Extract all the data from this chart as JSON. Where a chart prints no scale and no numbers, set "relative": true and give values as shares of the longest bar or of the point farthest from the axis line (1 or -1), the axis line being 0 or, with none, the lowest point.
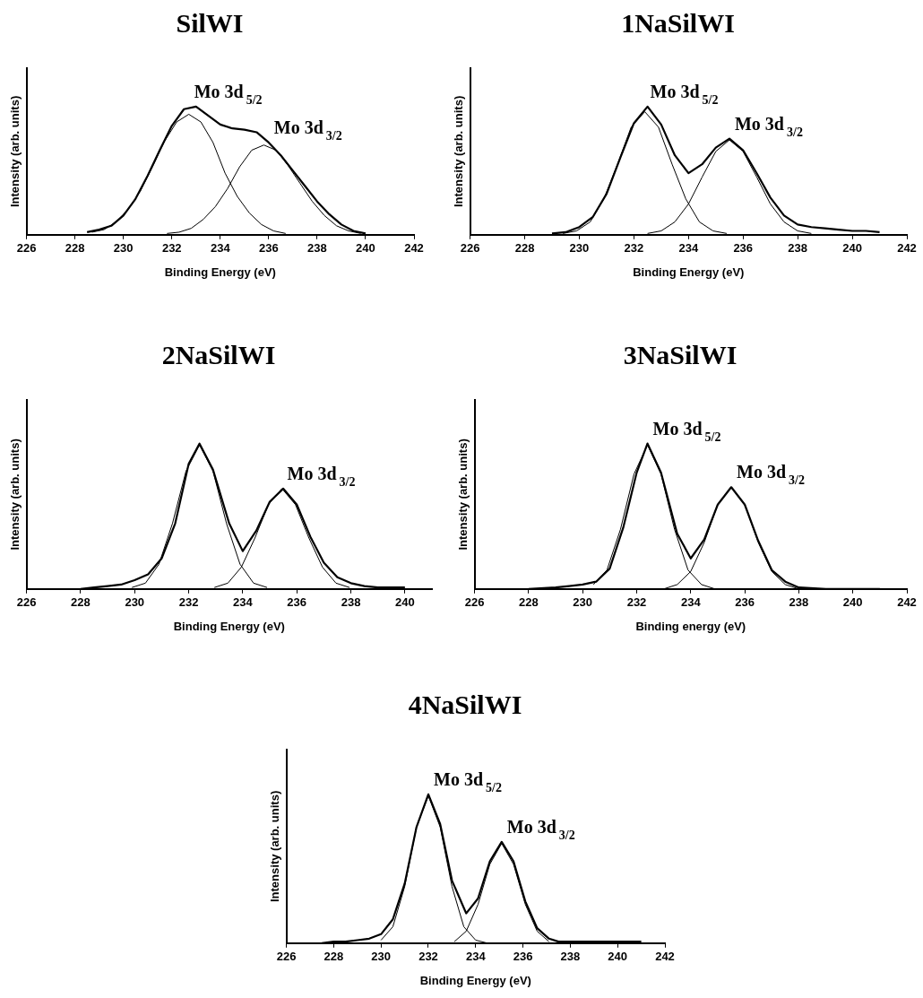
{
  "chart_data": [
    {
      "type": "line",
      "title": "SilWI",
      "xlabel": "Binding Energy (eV)",
      "ylabel": "Intensity (arb. units)",
      "relative": true,
      "marker": "none",
      "xlim": [
        226,
        242
      ],
      "xticks": [
        226,
        228,
        230,
        232,
        234,
        236,
        238,
        240,
        242
      ],
      "annotations": [
        {
          "text": "Mo 3d$_{5/2}$",
          "x": 232.7,
          "y": 1.0
        },
        {
          "text": "Mo 3d$_{3/2}$",
          "x": 236,
          "y": 0.72
        }
      ],
      "series": [
        {
          "color": "#000000",
          "x": [
            228.5,
            229,
            229.5,
            230,
            230.5,
            231,
            231.5,
            232,
            232.5,
            233,
            233.5,
            234,
            234.5,
            235,
            235.5,
            236,
            236.5,
            237,
            237.5,
            238,
            238.5,
            239,
            239.5,
            240
          ],
          "values": [
            0.02,
            0.04,
            0.07,
            0.15,
            0.28,
            0.46,
            0.66,
            0.85,
            0.98,
            1.0,
            0.93,
            0.86,
            0.83,
            0.82,
            0.8,
            0.72,
            0.62,
            0.5,
            0.38,
            0.26,
            0.16,
            0.08,
            0.03,
            0.01
          ]
        },
        {
          "color": "#000000",
          "x": [
            228.7,
            229.2,
            229.7,
            230.2,
            230.7,
            231.2,
            231.7,
            232.2,
            232.7,
            233.2,
            233.7,
            234.2,
            234.7,
            235.2,
            235.7,
            236.2,
            236.7
          ],
          "values": [
            0.02,
            0.04,
            0.1,
            0.2,
            0.34,
            0.53,
            0.73,
            0.88,
            0.94,
            0.88,
            0.72,
            0.48,
            0.3,
            0.17,
            0.08,
            0.03,
            0.01
          ]
        },
        {
          "color": "#000000",
          "x": [
            231.8,
            232.3,
            232.8,
            233.3,
            233.8,
            234.3,
            234.8,
            235.3,
            235.8,
            236.3,
            236.8,
            237.3,
            237.8,
            238.3,
            238.8,
            239.3,
            239.8
          ],
          "values": [
            0.01,
            0.02,
            0.05,
            0.12,
            0.22,
            0.36,
            0.53,
            0.66,
            0.7,
            0.66,
            0.54,
            0.4,
            0.26,
            0.15,
            0.07,
            0.03,
            0.01
          ]
        }
      ]
    },
    {
      "type": "line",
      "title": "1NaSilWI",
      "xlabel": "Binding Energy (eV)",
      "ylabel": "Intensity (arb. units)",
      "relative": true,
      "marker": "none",
      "xlim": [
        226,
        242
      ],
      "xticks": [
        226,
        228,
        230,
        232,
        234,
        236,
        238,
        240,
        242
      ],
      "annotations": [
        {
          "text": "Mo 3d$_{5/2}$",
          "x": 232.4,
          "y": 1.0
        },
        {
          "text": "Mo 3d$_{3/2}$",
          "x": 235.5,
          "y": 0.75
        }
      ],
      "series": [
        {
          "color": "#000000",
          "x": [
            229,
            229.5,
            230,
            230.5,
            231,
            231.5,
            232,
            232.5,
            233,
            233.5,
            234,
            234.5,
            235,
            235.5,
            236,
            236.5,
            237,
            237.5,
            238,
            238.5,
            239,
            239.5,
            240,
            240.5,
            241
          ],
          "values": [
            0.01,
            0.02,
            0.06,
            0.14,
            0.32,
            0.6,
            0.87,
            1.0,
            0.86,
            0.62,
            0.48,
            0.55,
            0.68,
            0.75,
            0.66,
            0.48,
            0.29,
            0.15,
            0.08,
            0.06,
            0.05,
            0.04,
            0.03,
            0.03,
            0.02
          ]
        },
        {
          "color": "#000000",
          "x": [
            229.4,
            229.9,
            230.4,
            230.9,
            231.4,
            231.9,
            232.4,
            232.9,
            233.4,
            233.9,
            234.4,
            234.9,
            235.4
          ],
          "values": [
            0.01,
            0.03,
            0.1,
            0.28,
            0.55,
            0.84,
            0.96,
            0.84,
            0.55,
            0.28,
            0.1,
            0.03,
            0.01
          ]
        },
        {
          "color": "#000000",
          "x": [
            232.5,
            233,
            233.5,
            234,
            234.5,
            235,
            235.5,
            236,
            236.5,
            237,
            237.5,
            238,
            238.5
          ],
          "values": [
            0.01,
            0.03,
            0.1,
            0.24,
            0.45,
            0.65,
            0.74,
            0.65,
            0.45,
            0.24,
            0.1,
            0.03,
            0.01
          ]
        }
      ]
    },
    {
      "type": "line",
      "title": "2NaSilWI",
      "xlabel": "Binding Energy (eV)",
      "ylabel": "Intensity (arb. units)",
      "relative": true,
      "marker": "none",
      "xlim": [
        226,
        241
      ],
      "xticks": [
        226,
        228,
        230,
        232,
        234,
        236,
        238,
        240
      ],
      "annotations": [
        {
          "text": "Mo 3d$_{3/2}$",
          "x": 235.45,
          "y": 0.69
        }
      ],
      "series": [
        {
          "color": "#000000",
          "x": [
            228,
            228.5,
            229,
            229.5,
            230,
            230.5,
            231,
            231.5,
            232,
            232.4,
            232.9,
            233.5,
            234,
            234.5,
            235,
            235.5,
            236,
            236.5,
            237,
            237.5,
            238,
            238.5,
            239,
            240
          ],
          "values": [
            0.0,
            0.01,
            0.02,
            0.03,
            0.06,
            0.1,
            0.21,
            0.45,
            0.86,
            1.0,
            0.82,
            0.45,
            0.26,
            0.4,
            0.6,
            0.69,
            0.58,
            0.36,
            0.18,
            0.08,
            0.04,
            0.02,
            0.01,
            0.01
          ]
        },
        {
          "color": "#000000",
          "x": [
            229.9,
            230.4,
            230.9,
            231.4,
            231.9,
            232.4,
            232.9,
            233.4,
            233.9,
            234.4,
            234.9
          ],
          "values": [
            0.01,
            0.04,
            0.17,
            0.45,
            0.81,
            0.99,
            0.81,
            0.45,
            0.17,
            0.04,
            0.01
          ]
        },
        {
          "color": "#000000",
          "x": [
            232.95,
            233.45,
            233.95,
            234.45,
            234.95,
            235.45,
            235.95,
            236.45,
            236.95,
            237.45,
            237.95
          ],
          "values": [
            0.01,
            0.04,
            0.15,
            0.35,
            0.58,
            0.69,
            0.58,
            0.35,
            0.15,
            0.04,
            0.01
          ]
        }
      ]
    },
    {
      "type": "line",
      "title": "3NaSilWI",
      "xlabel": "Binding energy (eV)",
      "ylabel": "Intensity (arb. units)",
      "relative": true,
      "marker": "none",
      "xlim": [
        226,
        242
      ],
      "xticks": [
        226,
        228,
        230,
        232,
        234,
        236,
        238,
        240,
        242
      ],
      "annotations": [
        {
          "text": "Mo 3d$_{5/2}$",
          "x": 232.4,
          "y": 1.0
        },
        {
          "text": "Mo 3d$_{3/2}$",
          "x": 235.5,
          "y": 0.7
        }
      ],
      "series": [
        {
          "color": "#000000",
          "x": [
            228,
            229,
            229.5,
            230,
            230.5,
            231,
            231.5,
            232,
            232.4,
            232.9,
            233.5,
            234,
            234.5,
            235,
            235.5,
            236,
            236.5,
            237,
            237.5,
            238,
            239,
            240,
            241
          ],
          "values": [
            0.0,
            0.01,
            0.02,
            0.03,
            0.05,
            0.14,
            0.42,
            0.8,
            1.0,
            0.8,
            0.38,
            0.21,
            0.34,
            0.58,
            0.7,
            0.58,
            0.33,
            0.13,
            0.05,
            0.01,
            0.0,
            0.0,
            0.0
          ]
        },
        {
          "color": "#000000",
          "x": [
            230.4,
            230.9,
            231.4,
            231.9,
            232.4,
            232.9,
            233.4,
            233.9,
            234.4,
            234.9
          ],
          "values": [
            0.03,
            0.13,
            0.41,
            0.79,
            0.99,
            0.79,
            0.41,
            0.13,
            0.03,
            0.0
          ]
        },
        {
          "color": "#000000",
          "x": [
            233,
            233.5,
            234,
            234.5,
            235,
            235.5,
            236,
            236.5,
            237,
            237.5,
            238
          ],
          "values": [
            0.0,
            0.03,
            0.12,
            0.32,
            0.58,
            0.7,
            0.58,
            0.32,
            0.12,
            0.03,
            0.0
          ]
        }
      ]
    },
    {
      "type": "line",
      "title": "4NaSilWI",
      "xlabel": "Binding Energy (eV)",
      "ylabel": "Intensity (arb. units)",
      "relative": true,
      "marker": "none",
      "xlim": [
        226,
        242
      ],
      "xticks": [
        226,
        228,
        230,
        232,
        234,
        236,
        238,
        240,
        242
      ],
      "annotations": [
        {
          "text": "Mo 3d$_{5/2}$",
          "x": 232.0,
          "y": 1.0
        },
        {
          "text": "Mo 3d$_{3/2}$",
          "x": 235.1,
          "y": 0.68
        }
      ],
      "series": [
        {
          "color": "#000000",
          "x": [
            227.5,
            228,
            228.5,
            229,
            229.5,
            230,
            230.5,
            231,
            231.5,
            232,
            232.5,
            233,
            233.6,
            234.1,
            234.6,
            235.1,
            235.6,
            236.1,
            236.6,
            237.1,
            237.5,
            238,
            239,
            240,
            241
          ],
          "values": [
            0.0,
            0.01,
            0.01,
            0.02,
            0.03,
            0.06,
            0.16,
            0.4,
            0.78,
            1.0,
            0.8,
            0.42,
            0.2,
            0.3,
            0.55,
            0.68,
            0.55,
            0.28,
            0.1,
            0.03,
            0.01,
            0.01,
            0.01,
            0.01,
            0.01
          ]
        },
        {
          "color": "#000000",
          "x": [
            230,
            230.5,
            231,
            231.5,
            232,
            232.5,
            233,
            233.5,
            234,
            234.5
          ],
          "values": [
            0.02,
            0.11,
            0.38,
            0.78,
            0.99,
            0.78,
            0.38,
            0.11,
            0.02,
            0.0
          ]
        },
        {
          "color": "#000000",
          "x": [
            233.1,
            233.6,
            234.1,
            234.6,
            235.1,
            235.6,
            236.1,
            236.6,
            237.1
          ],
          "values": [
            0.01,
            0.08,
            0.26,
            0.53,
            0.67,
            0.53,
            0.26,
            0.08,
            0.01
          ]
        }
      ]
    }
  ]
}
